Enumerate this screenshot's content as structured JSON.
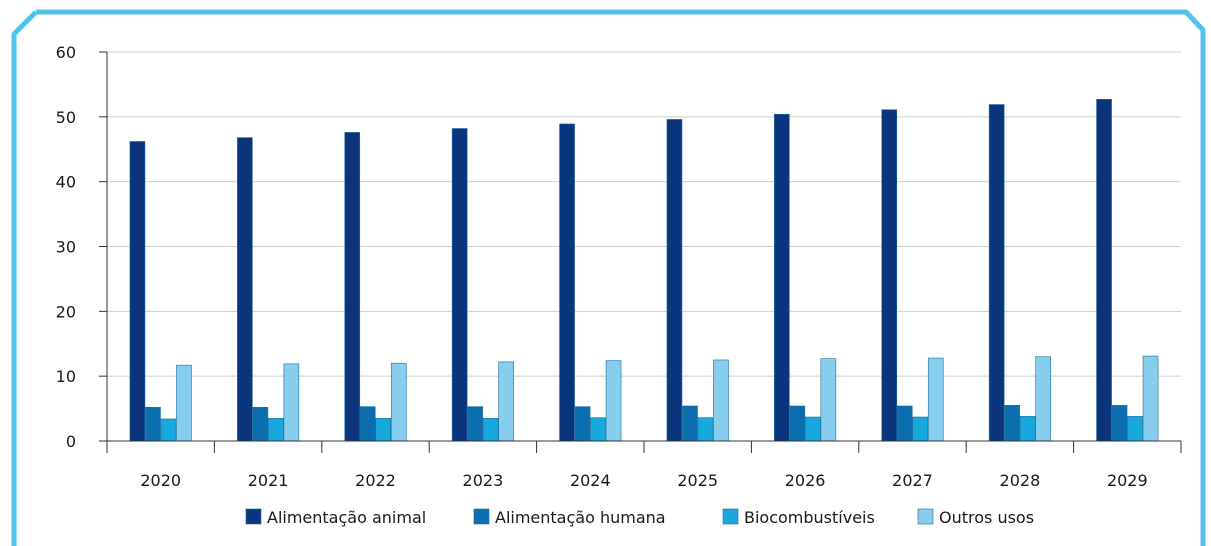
{
  "colors": {
    "frame": "#4fc3ea",
    "grid": "#cfcfcf",
    "axis": "#333333",
    "bar_stroke": "#1f6f9e"
  },
  "chart_data": {
    "type": "bar",
    "categories": [
      "2020",
      "2021",
      "2022",
      "2023",
      "2024",
      "2025",
      "2026",
      "2027",
      "2028",
      "2029"
    ],
    "series": [
      {
        "name": "Alimentação animal",
        "color": "#0a357c",
        "values": [
          46.2,
          46.8,
          47.6,
          48.2,
          48.9,
          49.6,
          50.4,
          51.1,
          51.9,
          52.7
        ]
      },
      {
        "name": "Alimentação humana",
        "color": "#0b6faf",
        "values": [
          5.2,
          5.2,
          5.3,
          5.3,
          5.3,
          5.4,
          5.4,
          5.4,
          5.5,
          5.5
        ]
      },
      {
        "name": "Biocombustíveis",
        "color": "#17a9dd",
        "values": [
          3.4,
          3.5,
          3.5,
          3.5,
          3.6,
          3.6,
          3.7,
          3.7,
          3.8,
          3.8
        ]
      },
      {
        "name": "Outros usos",
        "color": "#86cdee",
        "values": [
          11.7,
          11.9,
          12.0,
          12.2,
          12.4,
          12.5,
          12.7,
          12.8,
          13.0,
          13.1
        ]
      }
    ],
    "ylim": [
      0,
      60
    ],
    "yticks": [
      0,
      10,
      20,
      30,
      40,
      50,
      60
    ],
    "grid": true,
    "legend_position": "bottom"
  }
}
